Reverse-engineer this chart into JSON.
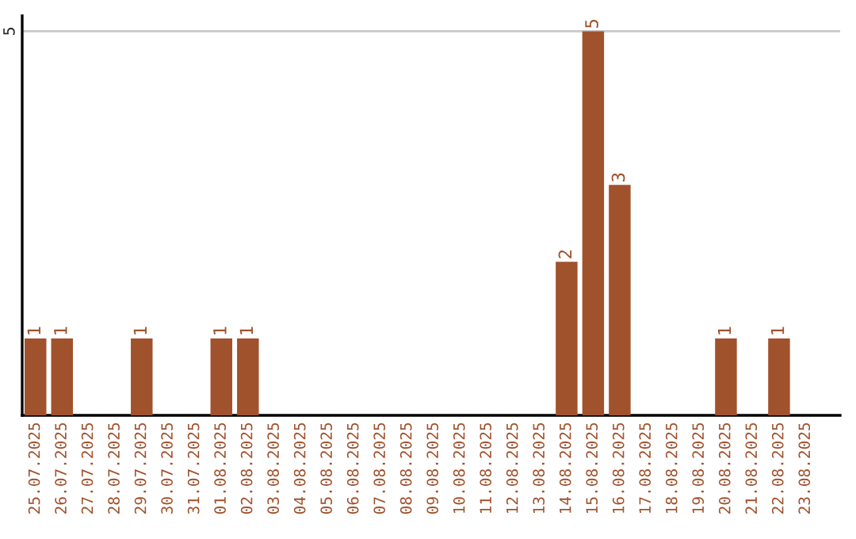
{
  "chart_data": {
    "type": "bar",
    "categories": [
      "25.07.2025",
      "26.07.2025",
      "27.07.2025",
      "28.07.2025",
      "29.07.2025",
      "30.07.2025",
      "31.07.2025",
      "01.08.2025",
      "02.08.2025",
      "03.08.2025",
      "04.08.2025",
      "05.08.2025",
      "06.08.2025",
      "07.08.2025",
      "08.08.2025",
      "09.08.2025",
      "10.08.2025",
      "11.08.2025",
      "12.08.2025",
      "13.08.2025",
      "14.08.2025",
      "15.08.2025",
      "16.08.2025",
      "17.08.2025",
      "18.08.2025",
      "19.08.2025",
      "20.08.2025",
      "21.08.2025",
      "22.08.2025",
      "23.08.2025"
    ],
    "values": [
      1,
      1,
      0,
      0,
      1,
      0,
      0,
      1,
      1,
      0,
      0,
      0,
      0,
      0,
      0,
      0,
      0,
      0,
      0,
      0,
      2,
      5,
      3,
      0,
      0,
      0,
      1,
      0,
      1,
      0
    ],
    "value_labels": [
      "1",
      "1",
      null,
      null,
      "1",
      null,
      null,
      "1",
      "1",
      null,
      null,
      null,
      null,
      null,
      null,
      null,
      null,
      null,
      null,
      null,
      "2",
      "5",
      "3",
      null,
      null,
      null,
      "1",
      null,
      "1",
      null
    ],
    "color": "#a0522d",
    "ylim": [
      0,
      5.2
    ],
    "yticks": [
      5
    ],
    "grid": "y",
    "legend": false
  }
}
